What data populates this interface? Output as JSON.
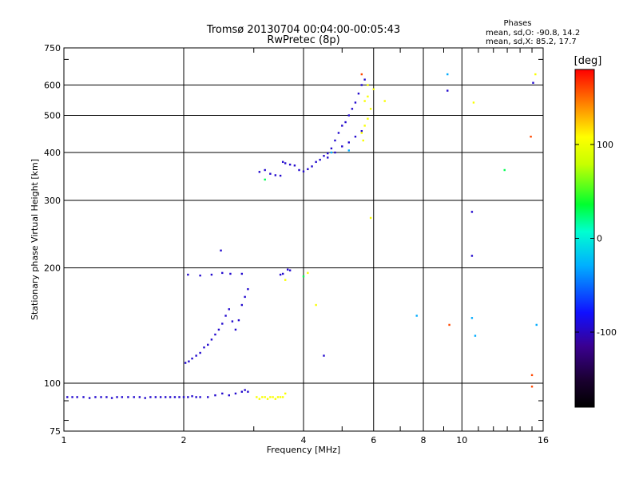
{
  "chart_data": {
    "type": "scatter",
    "title": "Tromsø 20130704 00:04:00-00:05:43",
    "subtitle": "RwPretec (8p)",
    "xlabel": "Frequency [MHz]",
    "ylabel": "Stationary phase Virtual Height [km]",
    "x_scale": "log",
    "y_scale": "log",
    "xlim": [
      1,
      16
    ],
    "ylim": [
      75,
      750
    ],
    "x_ticks": [
      1,
      2,
      4,
      6,
      8,
      10,
      16
    ],
    "x_tick_labels": [
      "1",
      "2",
      "4",
      "6",
      "8",
      "10",
      "16"
    ],
    "x_minor_ticks": [
      3,
      5,
      7,
      9,
      11,
      12,
      13,
      14,
      15
    ],
    "y_ticks": [
      75,
      100,
      200,
      300,
      400,
      500,
      600,
      750
    ],
    "y_tick_labels": [
      "75",
      "100",
      "200",
      "300",
      "400",
      "500",
      "600",
      "750"
    ],
    "grid": true,
    "stats": {
      "header": "Phases",
      "line_o": "mean, sd,O: -90.8, 14.2",
      "line_x": "mean, sd,X:  85.2, 17.7"
    },
    "colorbar": {
      "label": "[deg]",
      "range": [
        -180,
        180
      ],
      "ticks": [
        100,
        0,
        -100
      ],
      "tick_labels": [
        "100",
        "0",
        "-100"
      ]
    },
    "series": [
      {
        "name": "",
        "phase_deg": -95,
        "points": [
          [
            1.02,
            92
          ],
          [
            1.05,
            92
          ],
          [
            1.08,
            92
          ],
          [
            1.12,
            92
          ],
          [
            1.16,
            91.5
          ],
          [
            1.2,
            92
          ],
          [
            1.24,
            92
          ],
          [
            1.28,
            92
          ],
          [
            1.32,
            91.5
          ],
          [
            1.36,
            92
          ],
          [
            1.4,
            92
          ],
          [
            1.45,
            92
          ],
          [
            1.5,
            92
          ],
          [
            1.55,
            92
          ],
          [
            1.6,
            91.5
          ],
          [
            1.65,
            92
          ],
          [
            1.7,
            92
          ],
          [
            1.75,
            92
          ],
          [
            1.8,
            92
          ],
          [
            1.85,
            92
          ],
          [
            1.9,
            92
          ],
          [
            1.95,
            92
          ],
          [
            2.0,
            92
          ],
          [
            2.05,
            92
          ],
          [
            2.1,
            92.5
          ],
          [
            2.15,
            92
          ],
          [
            2.2,
            92
          ],
          [
            2.3,
            92
          ],
          [
            2.4,
            93
          ],
          [
            2.5,
            94
          ],
          [
            2.6,
            93
          ],
          [
            2.7,
            94
          ],
          [
            2.8,
            95
          ],
          [
            2.85,
            96
          ],
          [
            2.9,
            95
          ],
          [
            2.02,
            113
          ],
          [
            2.06,
            114
          ],
          [
            2.1,
            116
          ],
          [
            2.15,
            118
          ],
          [
            2.2,
            120
          ],
          [
            2.25,
            124
          ],
          [
            2.3,
            126
          ],
          [
            2.35,
            130
          ],
          [
            2.4,
            134
          ],
          [
            2.45,
            138
          ],
          [
            2.5,
            143
          ],
          [
            2.55,
            150
          ],
          [
            2.6,
            156
          ],
          [
            2.65,
            145
          ],
          [
            2.7,
            138
          ],
          [
            2.75,
            146
          ],
          [
            2.8,
            160
          ],
          [
            2.85,
            168
          ],
          [
            2.9,
            176
          ],
          [
            2.05,
            192
          ],
          [
            2.2,
            191
          ],
          [
            2.35,
            192
          ],
          [
            2.5,
            194
          ],
          [
            2.62,
            193
          ],
          [
            2.8,
            193
          ],
          [
            2.48,
            222
          ],
          [
            3.5,
            192
          ],
          [
            3.55,
            193
          ],
          [
            3.65,
            198
          ],
          [
            3.7,
            197
          ],
          [
            3.1,
            356
          ],
          [
            3.2,
            360
          ],
          [
            3.3,
            352
          ],
          [
            3.4,
            349
          ],
          [
            3.5,
            348
          ],
          [
            3.55,
            378
          ],
          [
            3.6,
            375
          ],
          [
            3.7,
            372
          ],
          [
            3.8,
            370
          ],
          [
            3.9,
            360
          ],
          [
            4.0,
            357
          ],
          [
            4.1,
            362
          ],
          [
            4.2,
            368
          ],
          [
            4.3,
            378
          ],
          [
            4.4,
            383
          ],
          [
            4.5,
            392
          ],
          [
            4.6,
            398
          ],
          [
            4.7,
            410
          ],
          [
            4.8,
            430
          ],
          [
            4.9,
            450
          ],
          [
            5.0,
            470
          ],
          [
            5.1,
            480
          ],
          [
            5.2,
            500
          ],
          [
            5.3,
            520
          ],
          [
            5.4,
            540
          ],
          [
            5.5,
            570
          ],
          [
            5.6,
            600
          ],
          [
            5.7,
            620
          ],
          [
            4.6,
            388
          ],
          [
            4.8,
            400
          ],
          [
            5.0,
            415
          ],
          [
            5.2,
            425
          ],
          [
            5.4,
            440
          ],
          [
            5.6,
            455
          ],
          [
            4.5,
            118
          ],
          [
            9.2,
            580
          ],
          [
            10.6,
            280
          ],
          [
            10.6,
            215
          ],
          [
            15.1,
            608
          ]
        ]
      },
      {
        "name": "",
        "phase_deg": 105,
        "points": [
          [
            3.05,
            92
          ],
          [
            3.1,
            91
          ],
          [
            3.15,
            92
          ],
          [
            3.2,
            92
          ],
          [
            3.25,
            91
          ],
          [
            3.3,
            92
          ],
          [
            3.35,
            92
          ],
          [
            3.4,
            91
          ],
          [
            3.45,
            92
          ],
          [
            3.5,
            92
          ],
          [
            3.55,
            92
          ],
          [
            3.6,
            94
          ],
          [
            5.6,
            450
          ],
          [
            5.7,
            470
          ],
          [
            5.8,
            490
          ],
          [
            5.9,
            520
          ],
          [
            5.7,
            545
          ],
          [
            5.8,
            560
          ],
          [
            5.65,
            430
          ],
          [
            5.8,
            600
          ],
          [
            6.0,
            585
          ],
          [
            6.4,
            545
          ],
          [
            5.9,
            270
          ],
          [
            3.6,
            186
          ],
          [
            4.1,
            194
          ],
          [
            4.3,
            160
          ],
          [
            10.7,
            540
          ],
          [
            15.3,
            640
          ]
        ]
      },
      {
        "name": "",
        "phase_deg": -30,
        "points": [
          [
            7.7,
            150
          ],
          [
            9.2,
            640
          ],
          [
            10.8,
            133
          ],
          [
            10.6,
            148
          ],
          [
            15.4,
            142
          ],
          [
            4.7,
            400
          ],
          [
            5.2,
            405
          ]
        ]
      },
      {
        "name": "",
        "phase_deg": 160,
        "points": [
          [
            5.6,
            640
          ],
          [
            9.3,
            142
          ],
          [
            15.0,
            105
          ],
          [
            15.0,
            98
          ],
          [
            14.9,
            440
          ]
        ]
      },
      {
        "name": "",
        "phase_deg": 30,
        "points": [
          [
            12.8,
            360
          ],
          [
            4.0,
            190
          ],
          [
            3.2,
            340
          ]
        ]
      }
    ]
  }
}
